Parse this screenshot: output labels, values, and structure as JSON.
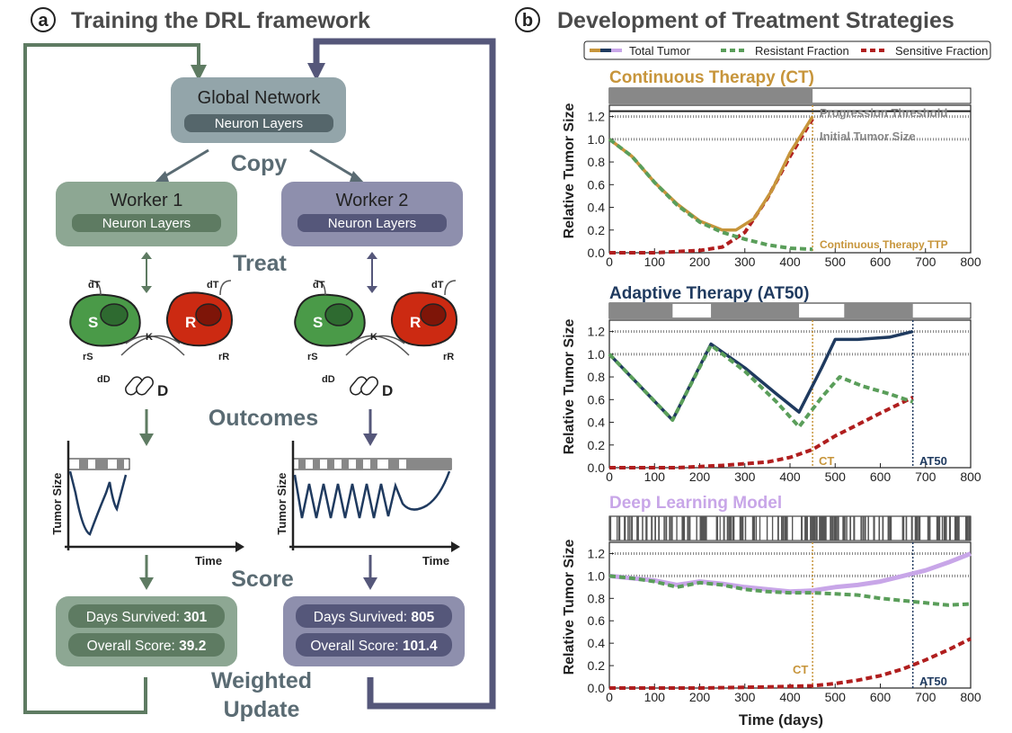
{
  "panel_a": {
    "letter": "a",
    "title": "Training the DRL framework",
    "global_network": {
      "title": "Global Network",
      "sub": "Neuron Layers"
    },
    "copy": "Copy",
    "worker1": {
      "title": "Worker 1",
      "sub": "Neuron Layers",
      "days_label": "Days Survived: ",
      "days": "301",
      "score_label": "Overall Score: ",
      "score": "39.2"
    },
    "worker2": {
      "title": "Worker 2",
      "sub": "Neuron Layers",
      "days_label": "Days Survived: ",
      "days": "805",
      "score_label": "Overall Score: ",
      "score": "101.4"
    },
    "treat": "Treat",
    "outcomes": "Outcomes",
    "score": "Score",
    "weighted": "Weighted",
    "update": "Update",
    "cells": {
      "s": "S",
      "r": "R",
      "k": "K",
      "d": "D",
      "dt": "dT",
      "rs": "rS",
      "rr": "rR",
      "dd": "dD"
    },
    "mini_chart": {
      "ylabel": "Tumor Size",
      "xlabel": "Time"
    },
    "colors": {
      "green_box": "#8da793",
      "green_dark": "#5e7b62",
      "purple_box": "#8e8fad",
      "purple_dark": "#55577a",
      "global_box": "#93a5aa",
      "global_dark": "#55666b"
    }
  },
  "panel_b": {
    "letter": "b",
    "title": "Development of Treatment Strategies",
    "legend": [
      "Total Tumor",
      "Resistant Fraction",
      "Sensitive Fraction"
    ],
    "x_label": "Time (days)",
    "y_label": "Relative Tumor Size",
    "annotations": {
      "progression": "Progression Threshold",
      "initial": "Initial Tumor Size",
      "ct_ttp": "Continuous Therapy TTP",
      "ct": "CT",
      "at50": "AT50"
    }
  },
  "chart_data": [
    {
      "type": "line",
      "title": "Continuous Therapy (CT)",
      "xlabel": "Time (days)",
      "ylabel": "Relative Tumor Size",
      "xlim": [
        0,
        800
      ],
      "ylim": [
        0,
        1.3
      ],
      "xticks": [
        0,
        100,
        200,
        300,
        400,
        500,
        600,
        700,
        800
      ],
      "yticks": [
        0.0,
        0.2,
        0.4,
        0.6,
        0.8,
        1.0,
        1.2
      ],
      "treatment_on": [
        [
          0,
          450
        ]
      ],
      "reference_lines": [
        {
          "y": 1.2,
          "label": "Progression Threshold"
        },
        {
          "y": 1.0,
          "label": "Initial Tumor Size"
        }
      ],
      "vlines": [
        {
          "x": 450,
          "label": "Continuous Therapy TTP"
        }
      ],
      "series": [
        {
          "name": "Total Tumor",
          "color": "#c7953b",
          "x": [
            0,
            50,
            100,
            150,
            200,
            250,
            280,
            320,
            360,
            400,
            450
          ],
          "y": [
            1.0,
            0.85,
            0.62,
            0.43,
            0.28,
            0.2,
            0.2,
            0.3,
            0.55,
            0.88,
            1.2
          ]
        },
        {
          "name": "Resistant Fraction",
          "color": "#5a9e5a",
          "x": [
            0,
            50,
            100,
            150,
            200,
            250,
            300,
            350,
            400,
            450
          ],
          "y": [
            1.0,
            0.85,
            0.62,
            0.42,
            0.27,
            0.18,
            0.12,
            0.07,
            0.04,
            0.03
          ]
        },
        {
          "name": "Sensitive Fraction",
          "color": "#b01e1e",
          "x": [
            0,
            100,
            150,
            200,
            250,
            300,
            350,
            400,
            450
          ],
          "y": [
            0.0,
            0.0,
            0.01,
            0.02,
            0.05,
            0.18,
            0.48,
            0.85,
            1.18
          ]
        }
      ]
    },
    {
      "type": "line",
      "title": "Adaptive Therapy (AT50)",
      "xlabel": "Time (days)",
      "ylabel": "Relative Tumor Size",
      "xlim": [
        0,
        800
      ],
      "ylim": [
        0,
        1.3
      ],
      "xticks": [
        0,
        100,
        200,
        300,
        400,
        500,
        600,
        700,
        800
      ],
      "yticks": [
        0.0,
        0.2,
        0.4,
        0.6,
        0.8,
        1.0,
        1.2
      ],
      "treatment_on": [
        [
          0,
          140
        ],
        [
          225,
          420
        ],
        [
          520,
          672
        ]
      ],
      "reference_lines": [
        {
          "y": 1.2,
          "label": ""
        },
        {
          "y": 1.0,
          "label": ""
        }
      ],
      "vlines": [
        {
          "x": 450,
          "label": "CT"
        },
        {
          "x": 672,
          "label": "AT50"
        }
      ],
      "series": [
        {
          "name": "Total Tumor",
          "color": "#1f3a5f",
          "x": [
            0,
            140,
            225,
            300,
            370,
            420,
            470,
            500,
            550,
            620,
            672
          ],
          "y": [
            1.0,
            0.42,
            1.09,
            0.88,
            0.65,
            0.49,
            0.88,
            1.13,
            1.13,
            1.15,
            1.2
          ]
        },
        {
          "name": "Resistant Fraction",
          "color": "#5a9e5a",
          "x": [
            0,
            140,
            225,
            300,
            370,
            420,
            470,
            510,
            560,
            620,
            672
          ],
          "y": [
            1.0,
            0.42,
            1.08,
            0.85,
            0.58,
            0.36,
            0.62,
            0.8,
            0.72,
            0.65,
            0.58
          ]
        },
        {
          "name": "Sensitive Fraction",
          "color": "#b01e1e",
          "x": [
            0,
            150,
            250,
            350,
            400,
            450,
            500,
            550,
            600,
            672
          ],
          "y": [
            0.0,
            0.0,
            0.02,
            0.05,
            0.09,
            0.16,
            0.28,
            0.38,
            0.48,
            0.62
          ]
        }
      ]
    },
    {
      "type": "line",
      "title": "Deep Learning Model",
      "xlabel": "Time (days)",
      "ylabel": "Relative Tumor Size",
      "xlim": [
        0,
        800
      ],
      "ylim": [
        0,
        1.3
      ],
      "xticks": [
        0,
        100,
        200,
        300,
        400,
        500,
        600,
        700,
        800
      ],
      "yticks": [
        0.0,
        0.2,
        0.4,
        0.6,
        0.8,
        1.0,
        1.2
      ],
      "treatment": "frequent switching",
      "reference_lines": [
        {
          "y": 1.2,
          "label": ""
        },
        {
          "y": 1.0,
          "label": ""
        }
      ],
      "vlines": [
        {
          "x": 450,
          "label": "CT"
        },
        {
          "x": 672,
          "label": "AT50"
        }
      ],
      "series": [
        {
          "name": "Total Tumor",
          "color": "#c8a6e8",
          "x": [
            0,
            50,
            100,
            150,
            200,
            250,
            300,
            350,
            400,
            450,
            500,
            550,
            600,
            650,
            700,
            750,
            800
          ],
          "y": [
            1.0,
            0.98,
            0.96,
            0.92,
            0.95,
            0.93,
            0.9,
            0.88,
            0.86,
            0.87,
            0.9,
            0.92,
            0.95,
            1.0,
            1.05,
            1.12,
            1.2
          ]
        },
        {
          "name": "Resistant Fraction",
          "color": "#5a9e5a",
          "x": [
            0,
            50,
            100,
            150,
            200,
            250,
            300,
            350,
            400,
            450,
            500,
            550,
            600,
            650,
            700,
            750,
            800
          ],
          "y": [
            1.0,
            0.98,
            0.95,
            0.9,
            0.94,
            0.92,
            0.88,
            0.86,
            0.85,
            0.85,
            0.84,
            0.83,
            0.8,
            0.78,
            0.76,
            0.74,
            0.75
          ]
        },
        {
          "name": "Sensitive Fraction",
          "color": "#b01e1e",
          "x": [
            0,
            200,
            350,
            450,
            500,
            550,
            600,
            650,
            700,
            750,
            800
          ],
          "y": [
            0.0,
            0.0,
            0.01,
            0.02,
            0.04,
            0.07,
            0.11,
            0.17,
            0.25,
            0.34,
            0.44
          ]
        }
      ]
    }
  ]
}
